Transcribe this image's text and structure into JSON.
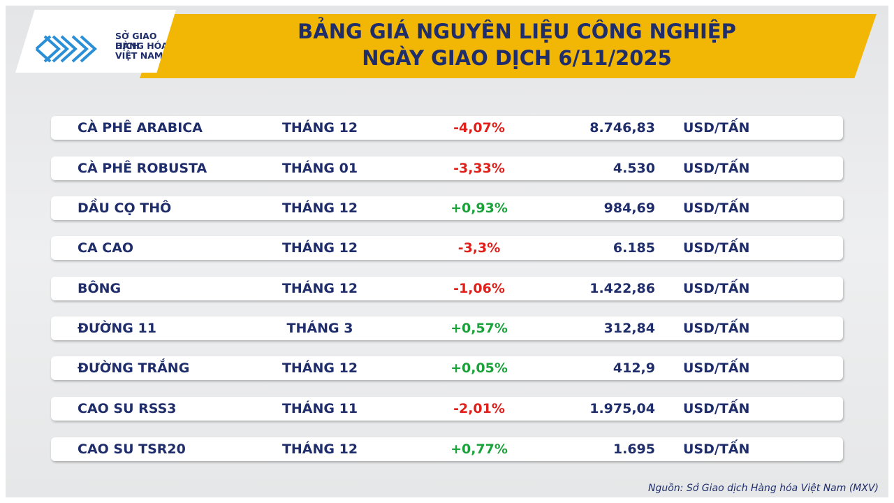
{
  "header": {
    "logo": [
      "SỞ GIAO DỊCH",
      "HÀNG HÓA",
      "VIỆT NAM"
    ],
    "title": [
      "BẢNG GIÁ NGUYÊN LIỆU CÔNG NGHIỆP",
      "NGÀY GIAO DỊCH 6/11/2025"
    ]
  },
  "table": {
    "rows": [
      [
        "CÀ PHÊ ARABICA",
        "THÁNG 12",
        "-4,07%",
        "8.746,83",
        "USD/TẤN"
      ],
      [
        "CÀ PHÊ ROBUSTA",
        "THÁNG 01",
        "-3,33%",
        "4.530",
        "USD/TẤN"
      ],
      [
        "DẦU CỌ THÔ",
        "THÁNG 12",
        "+0,93%",
        "984,69",
        "USD/TẤN"
      ],
      [
        "CA CAO",
        "THÁNG 12",
        "-3,3%",
        "6.185",
        "USD/TẤN"
      ],
      [
        "BÔNG",
        "THÁNG 12",
        "-1,06%",
        "1.422,86",
        "USD/TẤN"
      ],
      [
        "ĐƯỜNG 11",
        "THÁNG 3",
        "+0,57%",
        "312,84",
        "USD/TẤN"
      ],
      [
        "ĐƯỜNG TRẮNG",
        "THÁNG 12",
        "+0,05%",
        "412,9",
        "USD/TẤN"
      ],
      [
        "CAO SU RSS3",
        "THÁNG 11",
        "-2,01%",
        "1.975,04",
        "USD/TẤN"
      ],
      [
        "CAO SU TSR20",
        "THÁNG 12",
        "+0,77%",
        "1.695",
        "USD/TẤN"
      ]
    ]
  },
  "source": "Nguồn: Sở Giao dịch Hàng hóa Việt Nam (MXV)"
}
